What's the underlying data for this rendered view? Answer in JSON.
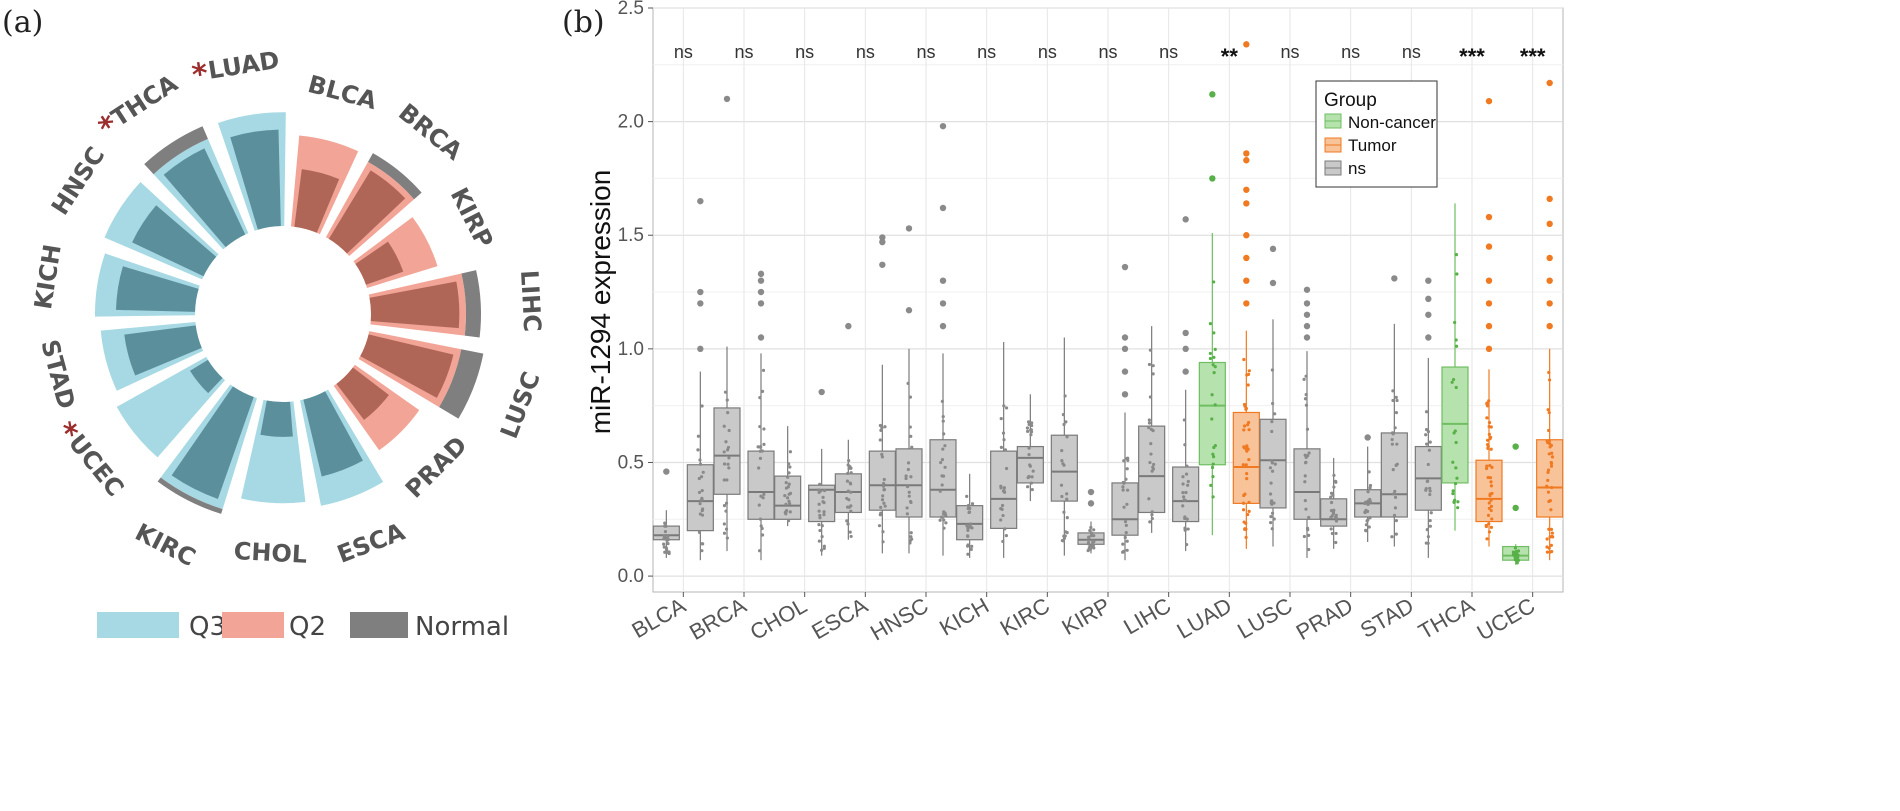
{
  "chart_data": [
    {
      "type": "radial-bar",
      "panel_label": "(a)",
      "categories": [
        "BLCA",
        "BRCA",
        "KIRP",
        "LIHC",
        "LUSC",
        "PRAD",
        "ESCA",
        "CHOL",
        "KIRC",
        "UCEC",
        "STAD",
        "KICH",
        "HNSC",
        "THCA",
        "LUAD"
      ],
      "starred": [
        "UCEC",
        "THCA",
        "LUAD"
      ],
      "star_symbol": "*",
      "series": [
        {
          "name": "Q3",
          "values": [
            0,
            0,
            0,
            0,
            0,
            0,
            0.86,
            0.81,
            0.93,
            0.82,
            0.76,
            0.8,
            0.85,
            0.82,
            0.91
          ]
        },
        {
          "name": "Q2",
          "values": [
            0.73,
            0.69,
            0.59,
            0.76,
            0.75,
            0.63,
            0,
            0,
            0,
            0,
            0,
            0,
            0,
            0,
            0
          ]
        },
        {
          "name": "Normal",
          "values": [
            0.5,
            0.77,
            0.34,
            0.88,
            0.93,
            0.39,
            0.68,
            0.3,
            0.97,
            0.18,
            0.62,
            0.68,
            0.68,
            0.93,
            0.83
          ]
        }
      ],
      "colors": {
        "Q3": "#a6d9e3",
        "Q2": "#f2a596",
        "Normal": "#7f7f7f",
        "overlap_Q3": "#5b8f9b",
        "overlap_Q2": "#b06656"
      },
      "star_color": "#9b2d2d",
      "legend": [
        "Q3",
        "Q2",
        "Normal"
      ]
    },
    {
      "type": "box",
      "panel_label": "(b)",
      "ylabel": "miR-1294 expression",
      "ylim": [
        -0.07,
        2.5
      ],
      "yticks": [
        "0.0",
        "0.5",
        "1.0",
        "1.5",
        "2.0",
        "2.5"
      ],
      "categories": [
        "BLCA",
        "BRCA",
        "CHOL",
        "ESCA",
        "HNSC",
        "KICH",
        "KIRC",
        "KIRP",
        "LIHC",
        "LUAD",
        "LUSC",
        "PRAD",
        "STAD",
        "THCA",
        "UCEC"
      ],
      "significance": [
        "ns",
        "ns",
        "ns",
        "ns",
        "ns",
        "ns",
        "ns",
        "ns",
        "ns",
        "**",
        "ns",
        "ns",
        "ns",
        "***",
        "***"
      ],
      "legend": {
        "title": "Group",
        "items": [
          "Non-cancer",
          "Tumor",
          "ns"
        ]
      },
      "colors": {
        "Non-cancer": "#7bc96f",
        "Tumor": "#f58b3c",
        "ns": "#a6a6a6"
      },
      "boxes": [
        {
          "cat": "BLCA",
          "group": "ns",
          "slot": 0,
          "q1": 0.16,
          "med": 0.18,
          "q3": 0.22,
          "lo": 0.08,
          "hi": 0.29,
          "out": [
            0.46
          ]
        },
        {
          "cat": "BLCA",
          "group": "ns",
          "slot": 1,
          "q1": 0.2,
          "med": 0.33,
          "q3": 0.49,
          "lo": 0.07,
          "hi": 0.9,
          "out": [
            1.0,
            1.2,
            1.25,
            1.65
          ]
        },
        {
          "cat": "BRCA",
          "group": "ns",
          "slot": 0,
          "q1": 0.36,
          "med": 0.53,
          "q3": 0.74,
          "lo": 0.11,
          "hi": 1.01,
          "out": [
            2.1
          ]
        },
        {
          "cat": "BRCA",
          "group": "ns",
          "slot": 1,
          "q1": 0.25,
          "med": 0.37,
          "q3": 0.55,
          "lo": 0.07,
          "hi": 0.98,
          "out": [
            1.05,
            1.2,
            1.25,
            1.3,
            1.33
          ]
        },
        {
          "cat": "CHOL",
          "group": "ns",
          "slot": 0,
          "q1": 0.25,
          "med": 0.31,
          "q3": 0.44,
          "lo": 0.22,
          "hi": 0.66,
          "out": []
        },
        {
          "cat": "CHOL",
          "group": "ns",
          "slot": 1,
          "q1": 0.24,
          "med": 0.38,
          "q3": 0.4,
          "lo": 0.09,
          "hi": 0.56,
          "out": [
            0.81
          ]
        },
        {
          "cat": "ESCA",
          "group": "ns",
          "slot": 0,
          "q1": 0.28,
          "med": 0.37,
          "q3": 0.45,
          "lo": 0.16,
          "hi": 0.6,
          "out": [
            1.1
          ]
        },
        {
          "cat": "ESCA",
          "group": "ns",
          "slot": 1,
          "q1": 0.29,
          "med": 0.4,
          "q3": 0.55,
          "lo": 0.1,
          "hi": 0.93,
          "out": [
            1.37,
            1.47,
            1.49
          ]
        },
        {
          "cat": "HNSC",
          "group": "ns",
          "slot": 0,
          "q1": 0.26,
          "med": 0.4,
          "q3": 0.56,
          "lo": 0.1,
          "hi": 1.0,
          "out": [
            1.17,
            1.53
          ]
        },
        {
          "cat": "HNSC",
          "group": "ns",
          "slot": 1,
          "q1": 0.26,
          "med": 0.38,
          "q3": 0.6,
          "lo": 0.09,
          "hi": 0.98,
          "out": [
            1.1,
            1.2,
            1.3,
            1.62,
            1.98
          ]
        },
        {
          "cat": "KICH",
          "group": "ns",
          "slot": 0,
          "q1": 0.16,
          "med": 0.23,
          "q3": 0.31,
          "lo": 0.08,
          "hi": 0.45,
          "out": []
        },
        {
          "cat": "KICH",
          "group": "ns",
          "slot": 1,
          "q1": 0.21,
          "med": 0.34,
          "q3": 0.55,
          "lo": 0.08,
          "hi": 1.03,
          "out": []
        },
        {
          "cat": "KIRC",
          "group": "ns",
          "slot": 0,
          "q1": 0.41,
          "med": 0.52,
          "q3": 0.57,
          "lo": 0.33,
          "hi": 0.8,
          "out": []
        },
        {
          "cat": "KIRC",
          "group": "ns",
          "slot": 1,
          "q1": 0.33,
          "med": 0.46,
          "q3": 0.62,
          "lo": 0.09,
          "hi": 1.05,
          "out": []
        },
        {
          "cat": "KIRP",
          "group": "ns",
          "slot": 0,
          "q1": 0.14,
          "med": 0.16,
          "q3": 0.19,
          "lo": 0.1,
          "hi": 0.24,
          "out": [
            0.32,
            0.37
          ]
        },
        {
          "cat": "KIRP",
          "group": "ns",
          "slot": 1,
          "q1": 0.18,
          "med": 0.25,
          "q3": 0.41,
          "lo": 0.07,
          "hi": 0.72,
          "out": [
            0.8,
            0.9,
            1.0,
            1.05,
            1.36
          ]
        },
        {
          "cat": "LIHC",
          "group": "ns",
          "slot": 0,
          "q1": 0.28,
          "med": 0.44,
          "q3": 0.66,
          "lo": 0.19,
          "hi": 1.1,
          "out": []
        },
        {
          "cat": "LIHC",
          "group": "ns",
          "slot": 1,
          "q1": 0.24,
          "med": 0.33,
          "q3": 0.48,
          "lo": 0.11,
          "hi": 0.82,
          "out": [
            0.9,
            1.0,
            1.07,
            1.57
          ]
        },
        {
          "cat": "LUAD",
          "group": "Non-cancer",
          "slot": 0,
          "q1": 0.49,
          "med": 0.75,
          "q3": 0.94,
          "lo": 0.18,
          "hi": 1.51,
          "out": [
            1.75,
            2.12
          ]
        },
        {
          "cat": "LUAD",
          "group": "Tumor",
          "slot": 1,
          "q1": 0.32,
          "med": 0.48,
          "q3": 0.72,
          "lo": 0.12,
          "hi": 1.08,
          "out": [
            1.2,
            1.3,
            1.4,
            1.5,
            1.64,
            1.7,
            1.83,
            1.86,
            2.34
          ]
        },
        {
          "cat": "LUSC",
          "group": "ns",
          "slot": 0,
          "q1": 0.3,
          "med": 0.51,
          "q3": 0.69,
          "lo": 0.13,
          "hi": 1.13,
          "out": [
            1.29,
            1.44
          ]
        },
        {
          "cat": "LUSC",
          "group": "ns",
          "slot": 1,
          "q1": 0.25,
          "med": 0.37,
          "q3": 0.56,
          "lo": 0.08,
          "hi": 0.99,
          "out": [
            1.05,
            1.1,
            1.15,
            1.2,
            1.26
          ]
        },
        {
          "cat": "PRAD",
          "group": "ns",
          "slot": 0,
          "q1": 0.22,
          "med": 0.25,
          "q3": 0.34,
          "lo": 0.12,
          "hi": 0.52,
          "out": []
        },
        {
          "cat": "PRAD",
          "group": "ns",
          "slot": 1,
          "q1": 0.26,
          "med": 0.32,
          "q3": 0.38,
          "lo": 0.15,
          "hi": 0.57,
          "out": [
            0.61
          ]
        },
        {
          "cat": "STAD",
          "group": "ns",
          "slot": 0,
          "q1": 0.26,
          "med": 0.36,
          "q3": 0.63,
          "lo": 0.13,
          "hi": 1.11,
          "out": [
            1.31
          ]
        },
        {
          "cat": "STAD",
          "group": "ns",
          "slot": 1,
          "q1": 0.29,
          "med": 0.43,
          "q3": 0.57,
          "lo": 0.08,
          "hi": 0.96,
          "out": [
            1.05,
            1.15,
            1.22,
            1.3
          ]
        },
        {
          "cat": "THCA",
          "group": "Non-cancer",
          "slot": 0,
          "q1": 0.41,
          "med": 0.67,
          "q3": 0.92,
          "lo": 0.2,
          "hi": 1.64,
          "out": []
        },
        {
          "cat": "THCA",
          "group": "Tumor",
          "slot": 1,
          "q1": 0.24,
          "med": 0.34,
          "q3": 0.51,
          "lo": 0.13,
          "hi": 0.91,
          "out": [
            1.0,
            1.1,
            1.2,
            1.3,
            1.45,
            1.58,
            2.09
          ]
        },
        {
          "cat": "UCEC",
          "group": "Non-cancer",
          "slot": 0,
          "q1": 0.07,
          "med": 0.09,
          "q3": 0.13,
          "lo": 0.05,
          "hi": 0.14,
          "out": [
            0.3,
            0.57
          ]
        },
        {
          "cat": "UCEC",
          "group": "Tumor",
          "slot": 1,
          "q1": 0.26,
          "med": 0.39,
          "q3": 0.6,
          "lo": 0.07,
          "hi": 1.0,
          "out": [
            1.1,
            1.2,
            1.3,
            1.4,
            1.55,
            1.66,
            2.17
          ]
        }
      ]
    }
  ]
}
